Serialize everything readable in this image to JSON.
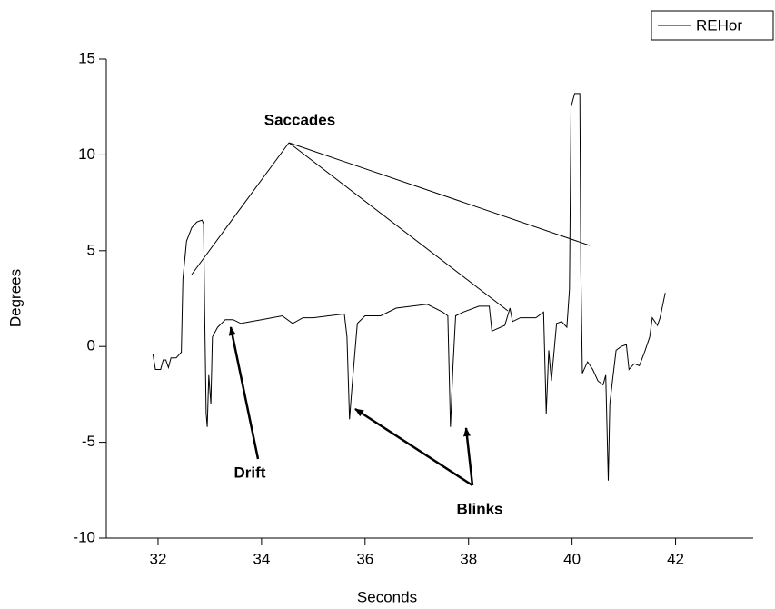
{
  "chart_data": {
    "type": "line",
    "xlabel": "Seconds",
    "ylabel": "Degrees",
    "xlim": [
      31,
      43.5
    ],
    "ylim": [
      -10,
      15
    ],
    "xticks": [
      32,
      34,
      36,
      38,
      40,
      42
    ],
    "yticks": [
      -10,
      -5,
      0,
      5,
      10,
      15
    ],
    "legend": "upper right",
    "annotations": [
      "Saccades",
      "Drift",
      "Blinks"
    ],
    "x": [
      31.9,
      31.95,
      32.05,
      32.1,
      32.15,
      32.2,
      32.25,
      32.35,
      32.45,
      32.48,
      32.55,
      32.65,
      32.75,
      32.85,
      32.88,
      32.9,
      32.93,
      32.95,
      32.98,
      33.02,
      33.05,
      33.15,
      33.3,
      33.45,
      33.6,
      33.8,
      34.0,
      34.2,
      34.4,
      34.6,
      34.8,
      35.0,
      35.3,
      35.6,
      35.65,
      35.7,
      35.75,
      35.85,
      36.0,
      36.3,
      36.6,
      36.9,
      37.2,
      37.5,
      37.6,
      37.65,
      37.7,
      37.75,
      37.9,
      38.2,
      38.4,
      38.45,
      38.7,
      38.8,
      38.85,
      39.0,
      39.3,
      39.45,
      39.5,
      39.55,
      39.6,
      39.7,
      39.8,
      39.9,
      39.95,
      39.98,
      40.05,
      40.15,
      40.17,
      40.2,
      40.3,
      40.4,
      40.5,
      40.6,
      40.65,
      40.7,
      40.73,
      40.78,
      40.85,
      40.95,
      41.05,
      41.1,
      41.2,
      41.3,
      41.4,
      41.5,
      41.55,
      41.65,
      41.7,
      41.8
    ],
    "series": [
      {
        "name": "REHor",
        "color": "#000000",
        "values": [
          -0.4,
          -1.2,
          -1.2,
          -0.7,
          -0.7,
          -1.1,
          -0.6,
          -0.6,
          -0.3,
          3.5,
          5.5,
          6.2,
          6.5,
          6.6,
          6.4,
          2.0,
          -3.5,
          -4.2,
          -1.5,
          -3.0,
          0.5,
          1.0,
          1.4,
          1.4,
          1.2,
          1.3,
          1.4,
          1.5,
          1.6,
          1.2,
          1.5,
          1.5,
          1.6,
          1.7,
          0.5,
          -3.8,
          -2.0,
          1.2,
          1.6,
          1.6,
          2.0,
          2.1,
          2.2,
          1.8,
          1.6,
          -4.2,
          -1.0,
          1.6,
          1.8,
          2.1,
          2.1,
          0.8,
          1.1,
          2.0,
          1.3,
          1.5,
          1.5,
          1.8,
          -3.5,
          -0.2,
          -1.8,
          1.2,
          1.3,
          1.0,
          3.0,
          12.5,
          13.2,
          13.2,
          4.0,
          -1.4,
          -0.8,
          -1.2,
          -1.8,
          -2.0,
          -1.5,
          -7.0,
          -3.0,
          -1.8,
          -0.2,
          0.0,
          0.1,
          -1.2,
          -0.9,
          -1.0,
          -0.3,
          0.5,
          1.5,
          1.1,
          1.5,
          2.8
        ]
      }
    ]
  }
}
